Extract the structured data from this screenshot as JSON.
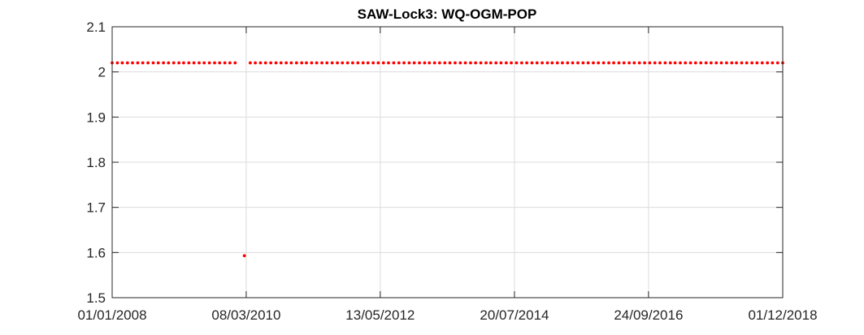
{
  "chart_data": {
    "type": "scatter",
    "title": "SAW-Lock3: WQ-OGM-POP",
    "xlabel": "",
    "ylabel": "",
    "ylim": [
      1.5,
      2.1
    ],
    "xlim": [
      "2008-01-01",
      "2018-12-01"
    ],
    "yticks": [
      1.5,
      1.6,
      1.7,
      1.8,
      1.9,
      2.0,
      2.1
    ],
    "ytick_labels": [
      "1.5",
      "1.6",
      "1.7",
      "1.8",
      "1.9",
      "2",
      "2.1"
    ],
    "xticks": [
      "2008-01-01",
      "2010-03-08",
      "2012-05-13",
      "2014-07-20",
      "2016-09-24",
      "2018-12-01"
    ],
    "xtick_labels": [
      "01/01/2008",
      "08/03/2010",
      "13/05/2012",
      "20/07/2014",
      "24/09/2016",
      "01/12/2018"
    ],
    "grid": true,
    "color": "#ff0000",
    "series": [
      {
        "constant_value": 2.02,
        "date_range": [
          "2008-01-01",
          "2018-12-01"
        ],
        "gap": [
          "2010-02-01",
          "2010-03-01"
        ]
      },
      {
        "x": [
          "2010-02-25"
        ],
        "y": [
          1.593
        ]
      }
    ]
  }
}
